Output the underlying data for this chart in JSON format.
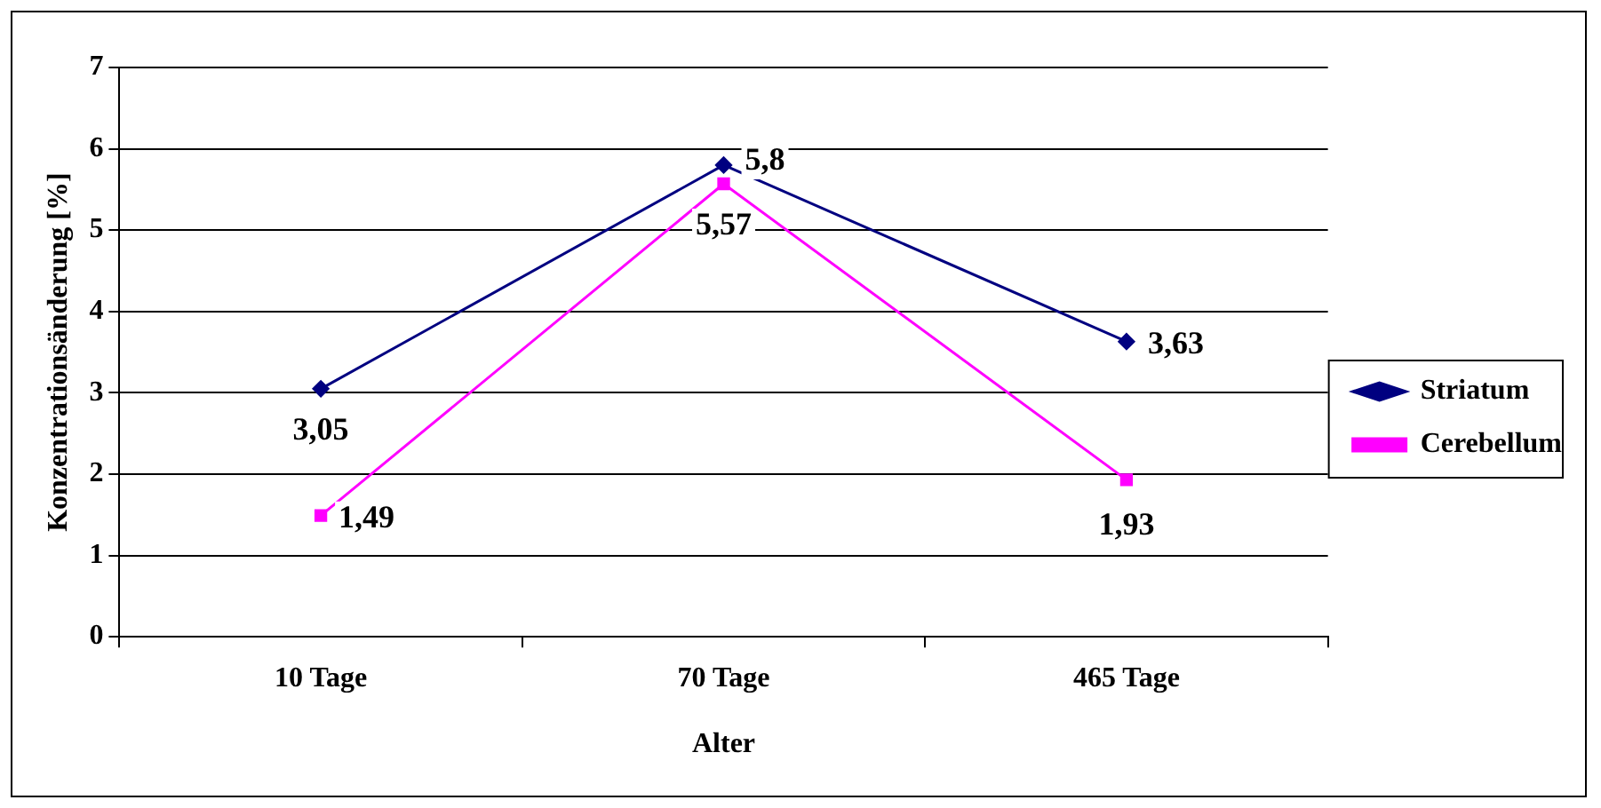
{
  "chart_data": {
    "type": "line",
    "xlabel": "Alter",
    "ylabel": "Konzentrationsänderung [%]",
    "categories": [
      "10 Tage",
      "70 Tage",
      "465 Tage"
    ],
    "series": [
      {
        "name": "Striatum",
        "color": "#000080",
        "marker": "diamond",
        "values": [
          3.05,
          5.8,
          3.63
        ],
        "value_labels": [
          "3,05",
          "5,8",
          "3,63"
        ]
      },
      {
        "name": "Cerebellum",
        "color": "#ff00ff",
        "marker": "square",
        "values": [
          1.49,
          5.57,
          1.93
        ],
        "value_labels": [
          "1,49",
          "5,57",
          "1,93"
        ]
      }
    ],
    "ylim": [
      0,
      7
    ],
    "yticks": [
      0,
      1,
      2,
      3,
      4,
      5,
      6,
      7
    ],
    "grid": "y",
    "legend": "right"
  }
}
